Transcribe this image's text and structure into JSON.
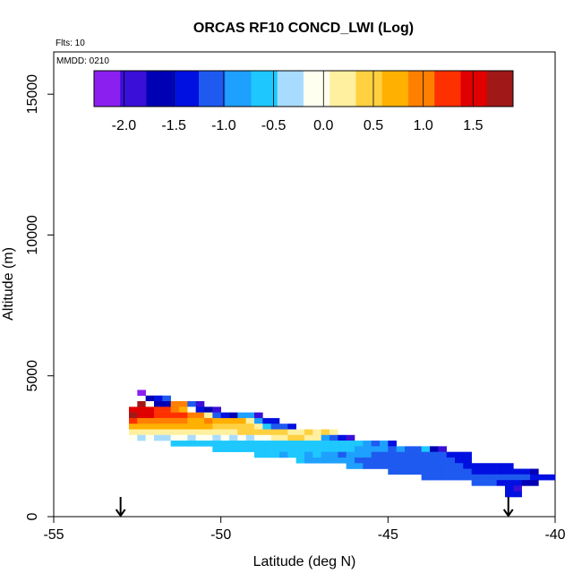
{
  "chart_data": {
    "type": "heatmap",
    "title": "ORCAS RF10 CONCD_LWI (Log)",
    "flts_label": "Flts: 10",
    "mmdd_label": "MMDD: 0210",
    "xlabel": "Latitude (deg N)",
    "ylabel": "Altitude (m)",
    "xlim": [
      -55,
      -40
    ],
    "ylim": [
      0,
      16500
    ],
    "x_ticks": [
      -55,
      -50,
      -45,
      -40
    ],
    "x_tick_labels": [
      "-55",
      "-50",
      "-45",
      "-40"
    ],
    "y_ticks": [
      0,
      5000,
      10000,
      15000
    ],
    "y_tick_labels": [
      "0",
      "5000",
      "10000",
      "15000"
    ],
    "colorbar": {
      "range": [
        -2.3,
        1.9
      ],
      "ticks": [
        -2.0,
        -1.5,
        -1.0,
        -0.5,
        0.0,
        0.5,
        1.0,
        1.5
      ],
      "tick_labels": [
        "-2.0",
        "-1.5",
        "-1.0",
        "-0.5",
        "0.0",
        "0.5",
        "1.0",
        "1.5"
      ],
      "colors": [
        "#8B1FF0",
        "#3A0FD8",
        "#0000B4",
        "#0010E0",
        "#1E5AF0",
        "#1EA0FF",
        "#1EC8FF",
        "#A8DCFF",
        "#FFFFF0",
        "#FFF0A0",
        "#FFD040",
        "#FFB000",
        "#FF8000",
        "#FF3000",
        "#E00000",
        "#A01818"
      ]
    },
    "arrows": [
      {
        "x": -53.0,
        "label": ""
      },
      {
        "x": -41.4,
        "label": ""
      }
    ],
    "cell_width_deg": 0.25,
    "cell_height_m": 200,
    "rows": [
      {
        "alt": 4400,
        "x_start": -52.5,
        "values": [
          -2.2
        ]
      },
      {
        "alt": 4200,
        "x_start": -52.25,
        "values": [
          -1.6,
          -1.4,
          -1.2
        ]
      },
      {
        "alt": 4000,
        "x_start": -52.5,
        "values": [
          1.8,
          -0.2,
          -1.7,
          -1.6,
          0.9,
          1.0,
          -1.0,
          -2.0
        ]
      },
      {
        "alt": 3800,
        "x_start": -52.75,
        "values": [
          1.6,
          1.5,
          1.4,
          1.3,
          1.2,
          1.1,
          0.6,
          -0.2,
          -1.3,
          -1.6,
          -1.8
        ]
      },
      {
        "alt": 3600,
        "x_start": -52.75,
        "values": [
          1.7,
          1.5,
          1.4,
          1.3,
          1.2,
          1.3,
          1.2,
          1.1,
          0.9,
          0.2,
          -1.0,
          -1.3,
          -1.6,
          -0.9,
          -0.8,
          -1.8
        ]
      },
      {
        "alt": 3400,
        "x_start": -52.75,
        "values": [
          1.2,
          1.1,
          1.0,
          1.0,
          0.9,
          0.9,
          1.0,
          0.8,
          0.8,
          0.9,
          0.8,
          0.8,
          0.7,
          0.6,
          0.3,
          -0.9,
          -1.3,
          -1.5
        ]
      },
      {
        "alt": 3200,
        "x_start": -52.75,
        "values": [
          0.8,
          0.8,
          0.8,
          0.8,
          0.7,
          0.7,
          0.7,
          0.6,
          0.6,
          0.6,
          0.5,
          0.4,
          0.5,
          0.4,
          0.5,
          0.3,
          -0.6,
          -1.1,
          -1.2,
          -1.5
        ]
      },
      {
        "alt": 3000,
        "x_start": -52.75,
        "values": [
          0.3,
          0.3,
          0.3,
          0.3,
          0.2,
          0.2,
          0.2,
          0.2,
          0.2,
          0.1,
          0.2,
          0.3,
          0.3,
          0.4,
          0.4,
          0.4,
          0.5,
          0.4,
          0.4,
          0.3,
          0.2,
          0.4,
          0.3,
          0.4,
          0.2
        ]
      },
      {
        "alt": 2800,
        "x_start": -52.75,
        "values": [
          -0.2,
          -0.3,
          -0.2,
          -0.3,
          -0.3,
          -0.2,
          -0.2,
          -0.3,
          -0.2,
          -0.2,
          -0.3,
          -0.2,
          -0.3,
          -0.2,
          -0.3,
          -0.2,
          -0.1,
          0.1,
          0.3,
          0.4,
          0.4,
          0.3,
          0.2,
          -0.9,
          -1.2,
          -1.5,
          -1.8
        ]
      },
      {
        "alt": 2600,
        "x_start": -51.5,
        "values": [
          -0.6,
          -0.5,
          -0.6,
          -0.5,
          -0.6,
          -0.6,
          -0.5,
          -0.5,
          -0.6,
          -0.6,
          -0.5,
          -0.6,
          -0.5,
          -0.6,
          -0.5,
          -0.5,
          -0.6,
          -0.5,
          -0.5,
          -0.6,
          -0.6,
          -0.5,
          -0.7,
          -0.9,
          -1.0,
          -0.8,
          -1.5
        ]
      },
      {
        "alt": 2400,
        "x_start": -50.25,
        "values": [
          -0.6,
          -0.7,
          -0.6,
          -0.5,
          -0.7,
          -0.6,
          -0.6,
          -0.6,
          -0.5,
          -0.6,
          -0.7,
          -0.6,
          -0.6,
          -0.7,
          -0.6,
          -0.6,
          -0.7,
          -0.8,
          -0.9,
          -0.9,
          -0.9,
          -1.0,
          -0.9,
          -1.0,
          -1.0,
          -0.7,
          -1.6,
          -1.8
        ]
      },
      {
        "alt": 2200,
        "x_start": -49.0,
        "values": [
          -0.6,
          -0.7,
          -0.7,
          -0.8,
          -0.7,
          -0.7,
          -0.8,
          -0.7,
          -0.8,
          -0.9,
          -1.0,
          -0.9,
          -0.9,
          -0.9,
          -1.0,
          -1.0,
          -1.0,
          -1.0,
          -1.0,
          -1.0,
          -1.0,
          -1.1,
          -1.1,
          -1.3,
          -1.4,
          -1.5
        ]
      },
      {
        "alt": 2000,
        "x_start": -47.75,
        "values": [
          -0.7,
          -0.8,
          -0.8,
          -0.9,
          -0.9,
          -0.9,
          -0.9,
          -1.0,
          -1.0,
          -1.0,
          -1.0,
          -1.0,
          -1.0,
          -1.0,
          -1.1,
          -1.1,
          -1.1,
          -1.2,
          -1.2,
          -1.3,
          -1.4
        ]
      },
      {
        "alt": 1800,
        "x_start": -46.25,
        "values": [
          -0.9,
          -0.9,
          -1.0,
          -1.0,
          -1.0,
          -1.1,
          -1.1,
          -1.1,
          -1.0,
          -1.1,
          -1.2,
          -1.2,
          -1.2,
          -1.2,
          -1.3,
          -1.3,
          -1.3,
          -1.4,
          -1.4,
          -1.5
        ]
      },
      {
        "alt": 1600,
        "x_start": -45.0,
        "values": [
          -1.0,
          -1.0,
          -1.0,
          -1.1,
          -1.1,
          -1.1,
          -1.2,
          -1.2,
          -1.2,
          -1.2,
          -1.3,
          -1.3,
          -1.3,
          -1.4,
          -1.4,
          -1.5,
          -1.5,
          -1.6
        ]
      },
      {
        "alt": 1400,
        "x_start": -44.0,
        "values": [
          -1.1,
          -1.1,
          -1.1,
          -1.2,
          -1.1,
          -1.1,
          -1.2,
          -1.2,
          -1.1,
          -1.1,
          -1.2,
          -1.2,
          -1.2,
          -1.3,
          -1.4,
          -1.5
        ]
      },
      {
        "alt": 1200,
        "x_start": -42.5,
        "values": [
          -1.0,
          -1.1,
          -1.2,
          -1.3,
          -1.4,
          -1.5,
          -1.6,
          -1.7
        ]
      },
      {
        "alt": 1000,
        "x_start": -41.5,
        "values": [
          -1.5,
          -2.0
        ]
      },
      {
        "alt": 800,
        "x_start": -41.5,
        "values": [
          -1.3,
          -1.4
        ]
      }
    ]
  }
}
